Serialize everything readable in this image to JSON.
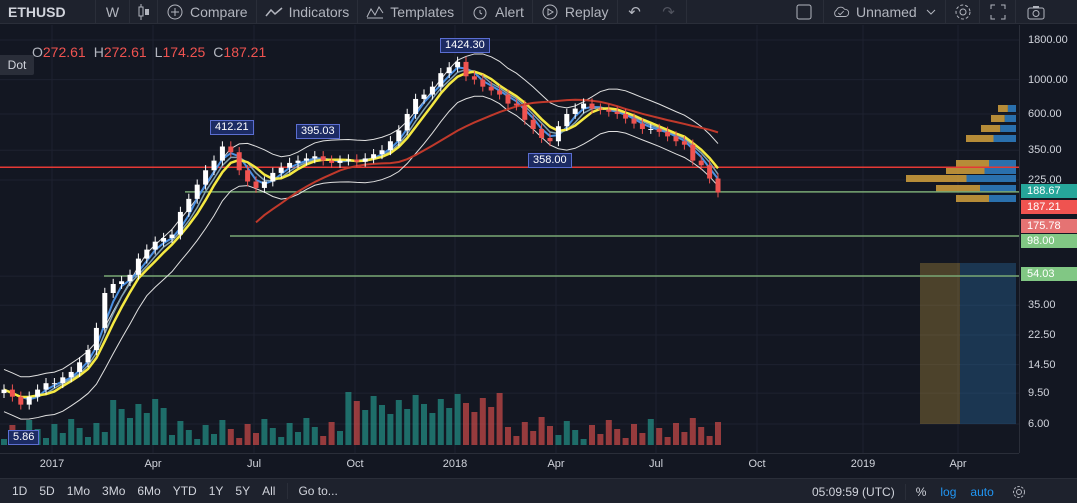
{
  "toolbar": {
    "symbol": "ETHUSD",
    "interval": "W",
    "compare_label": "Compare",
    "indicators_label": "Indicators",
    "templates_label": "Templates",
    "alert_label": "Alert",
    "replay_label": "Replay",
    "layout_name": "Unnamed",
    "icons": [
      "candles-icon",
      "plus-circle-icon",
      "indicators-icon",
      "templates-icon",
      "alert-icon",
      "replay-icon",
      "undo-icon",
      "redo-icon",
      "square-icon",
      "cloud-icon",
      "chevron-down-icon",
      "gear-icon",
      "fullscreen-icon",
      "camera-icon"
    ]
  },
  "legend": {
    "o_key": "O",
    "o_val": "272.61",
    "h_key": "H",
    "h_val": "272.61",
    "l_key": "L",
    "l_val": "174.25",
    "c_key": "C",
    "c_val": "187.21",
    "dot_label": "Dot"
  },
  "annotations": {
    "high_1424": "1424.30",
    "high_412": "412.21",
    "high_395": "395.03",
    "low_358": "358.00",
    "low_5": "5.86"
  },
  "chart_data": {
    "type": "line",
    "scale": "log",
    "price_ticks": [
      "1800.00",
      "1000.00",
      "600.00",
      "350.00",
      "225.00",
      "35.00",
      "22.50",
      "14.50",
      "9.50",
      "6.00"
    ],
    "price_badges": [
      {
        "label": "188.67",
        "color": "#26a69a"
      },
      {
        "label": "187.21",
        "color": "#ef5350"
      },
      {
        "label": "175.78",
        "color": "#e57373"
      },
      {
        "label": "98.00",
        "color": "#81c784"
      },
      {
        "label": "54.03",
        "color": "#81c784"
      }
    ],
    "time_ticks": [
      "2017",
      "Apr",
      "Jul",
      "Oct",
      "2018",
      "Apr",
      "Jul",
      "Oct",
      "2019",
      "Apr"
    ],
    "candles_close": [
      10,
      9,
      8,
      9,
      10,
      11,
      11,
      12,
      13,
      15,
      18,
      25,
      42,
      48,
      50,
      55,
      70,
      80,
      90,
      95,
      100,
      140,
      170,
      210,
      260,
      300,
      370,
      340,
      260,
      220,
      200,
      220,
      250,
      270,
      290,
      300,
      310,
      320,
      300,
      290,
      300,
      305,
      295,
      310,
      330,
      350,
      400,
      470,
      600,
      750,
      800,
      900,
      1100,
      1200,
      1300,
      1050,
      1000,
      900,
      850,
      800,
      700,
      680,
      550,
      480,
      420,
      400,
      500,
      600,
      650,
      700,
      650,
      640,
      620,
      600,
      560,
      520,
      480,
      480,
      460,
      430,
      400,
      380,
      300,
      280,
      230,
      187
    ],
    "horizontal_levels": [
      272,
      188.67,
      98,
      54.03
    ],
    "colors": {
      "up": "#ffffff",
      "down": "#ef5350",
      "ma_yellow": "#f5e942",
      "ma_blue": "#4a90e2",
      "ma_red": "#c0392b",
      "volume_up": "#26a69a",
      "volume_down": "#ef5350"
    }
  },
  "bottombar": {
    "ranges": [
      "1D",
      "5D",
      "1Mo",
      "3Mo",
      "6Mo",
      "YTD",
      "1Y",
      "5Y",
      "All"
    ],
    "goto_label": "Go to...",
    "time": "05:09:59 (UTC)",
    "percent_label": "%",
    "log_label": "log",
    "auto_label": "auto"
  }
}
